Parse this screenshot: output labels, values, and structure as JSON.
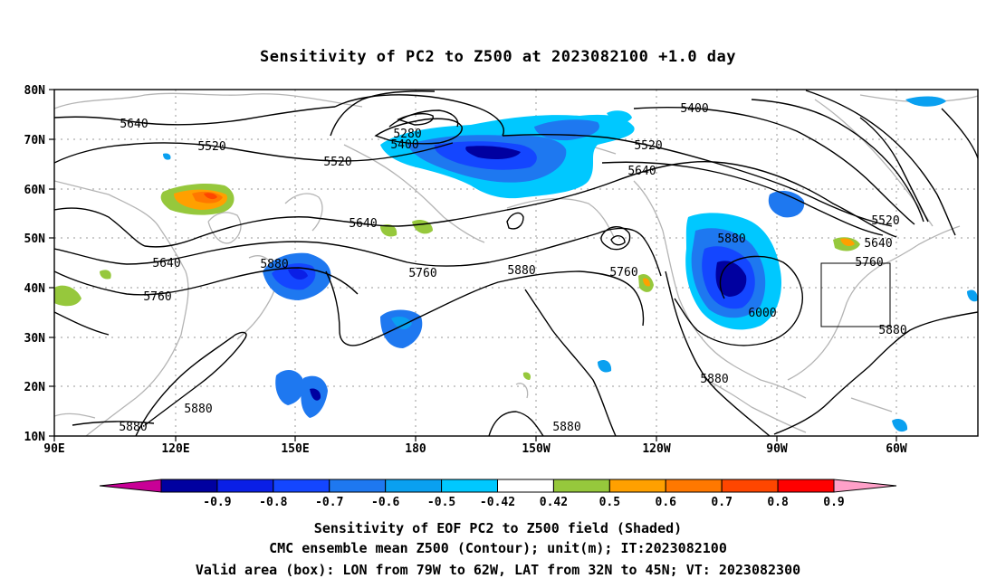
{
  "title": "Sensitivity of PC2 to Z500 at 2023082100 +1.0 day",
  "lat_ticks": [
    "80N",
    "70N",
    "60N",
    "50N",
    "40N",
    "30N",
    "20N",
    "10N"
  ],
  "lon_ticks": [
    "90E",
    "120E",
    "150E",
    "180",
    "150W",
    "120W",
    "90W",
    "60W"
  ],
  "colorbar": {
    "labels": [
      "-0.9",
      "-0.8",
      "-0.7",
      "-0.6",
      "-0.5",
      "-0.42",
      "0.42",
      "0.5",
      "0.6",
      "0.7",
      "0.8",
      "0.9"
    ],
    "colors": [
      "#0000a0",
      "#0a1fe6",
      "#1446ff",
      "#1e78f0",
      "#0aa0f0",
      "#00c8ff",
      "#ffffff",
      "#96c83c",
      "#ffa000",
      "#ff7800",
      "#ff4600",
      "#ff0000"
    ],
    "low_color": "#c80096",
    "high_color": "#ffa0c8"
  },
  "contour_labels": [
    {
      "id": "l5640a",
      "text": "5640"
    },
    {
      "id": "l5520a",
      "text": "5520"
    },
    {
      "id": "l5520b",
      "text": "5520"
    },
    {
      "id": "l5280",
      "text": "5280"
    },
    {
      "id": "l5400a",
      "text": "5400"
    },
    {
      "id": "l5400b",
      "text": "5400"
    },
    {
      "id": "l5520c",
      "text": "5520"
    },
    {
      "id": "l5640b",
      "text": "5640"
    },
    {
      "id": "l5640c",
      "text": "5640"
    },
    {
      "id": "l5640d",
      "text": "5640"
    },
    {
      "id": "l5880a",
      "text": "5880"
    },
    {
      "id": "l5760a",
      "text": "5760"
    },
    {
      "id": "l5760b",
      "text": "5760"
    },
    {
      "id": "l5880b",
      "text": "5880"
    },
    {
      "id": "l5760c",
      "text": "5760"
    },
    {
      "id": "l5880c",
      "text": "5880"
    },
    {
      "id": "l5520d",
      "text": "5520"
    },
    {
      "id": "l5640e",
      "text": "5640"
    },
    {
      "id": "l5760d",
      "text": "5760"
    },
    {
      "id": "l6000",
      "text": "6000"
    },
    {
      "id": "l5880d",
      "text": "5880"
    },
    {
      "id": "l5880e",
      "text": "5880"
    },
    {
      "id": "l5880f",
      "text": "5880"
    },
    {
      "id": "l5880g",
      "text": "5880"
    },
    {
      "id": "l5880h",
      "text": "5880"
    }
  ],
  "caption": [
    "Sensitivity of EOF PC2 to Z500 field (Shaded)",
    "CMC ensemble mean Z500 (Contour); unit(m); IT:2023082100",
    "Valid area (box): LON from 79W to 62W, LAT from 32N to 45N; VT: 2023082300"
  ]
}
